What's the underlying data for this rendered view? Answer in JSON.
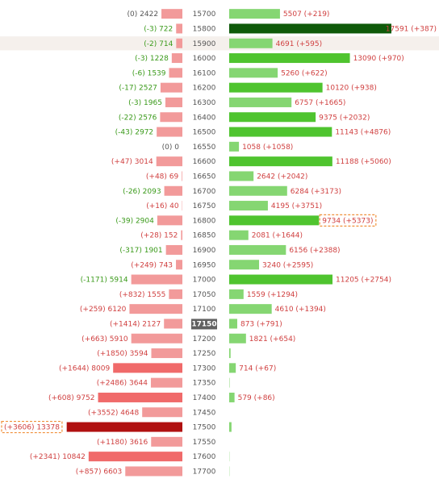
{
  "chart_data": {
    "type": "bar",
    "title": "",
    "xlabel": "",
    "ylabel": "",
    "left_max": 14000,
    "right_max": 17591,
    "current_strike": "17150",
    "colors": {
      "put_text_pos": "#d04040",
      "put_text_neg": "#3a9a1a",
      "put_text_zero": "#555555",
      "call_text": "#d04040",
      "put_bar": "#f29a9a",
      "put_bar_dark": "#f06a6a",
      "put_bar_max": "#b01010",
      "call_bar": "#85d672",
      "call_bar_dark": "#4fc42f",
      "call_bar_max": "#0f5a0a",
      "highlight_row": "#f5f0ec",
      "current_strike_bg": "#616161",
      "dashed_box": "#f0903a"
    },
    "rows": [
      {
        "strike": "15700",
        "put_label": "(0) 2422",
        "put_value": 2422,
        "put_change": 0,
        "call_label": "5507 (+219)",
        "call_value": 5507
      },
      {
        "strike": "15800",
        "put_label": "(-3) 722",
        "put_value": 722,
        "put_change": -3,
        "call_label": "17591 (+387)",
        "call_value": 17591,
        "call_max": true
      },
      {
        "strike": "15900",
        "put_label": "(-2) 714",
        "put_value": 714,
        "put_change": -2,
        "call_label": "4691 (+595)",
        "call_value": 4691,
        "highlight": true
      },
      {
        "strike": "16000",
        "put_label": "(-3) 1228",
        "put_value": 1228,
        "put_change": -3,
        "call_label": "13090 (+970)",
        "call_value": 13090
      },
      {
        "strike": "16100",
        "put_label": "(-6) 1539",
        "put_value": 1539,
        "put_change": -6,
        "call_label": "5260 (+622)",
        "call_value": 5260
      },
      {
        "strike": "16200",
        "put_label": "(-17) 2527",
        "put_value": 2527,
        "put_change": -17,
        "call_label": "10120 (+938)",
        "call_value": 10120
      },
      {
        "strike": "16300",
        "put_label": "(-3) 1965",
        "put_value": 1965,
        "put_change": -3,
        "call_label": "6757 (+1665)",
        "call_value": 6757
      },
      {
        "strike": "16400",
        "put_label": "(-22) 2576",
        "put_value": 2576,
        "put_change": -22,
        "call_label": "9375 (+2032)",
        "call_value": 9375
      },
      {
        "strike": "16500",
        "put_label": "(-43) 2972",
        "put_value": 2972,
        "put_change": -43,
        "call_label": "11143 (+4876)",
        "call_value": 11143
      },
      {
        "strike": "16550",
        "put_label": "(0) 0",
        "put_value": 0,
        "put_change": 0,
        "call_label": "1058 (+1058)",
        "call_value": 1058
      },
      {
        "strike": "16600",
        "put_label": "(+47) 3014",
        "put_value": 3014,
        "put_change": 47,
        "call_label": "11188 (+5060)",
        "call_value": 11188
      },
      {
        "strike": "16650",
        "put_label": "(+48) 69",
        "put_value": 69,
        "put_change": 48,
        "call_label": "2642 (+2042)",
        "call_value": 2642
      },
      {
        "strike": "16700",
        "put_label": "(-26) 2093",
        "put_value": 2093,
        "put_change": -26,
        "call_label": "6284 (+3173)",
        "call_value": 6284
      },
      {
        "strike": "16750",
        "put_label": "(+16) 40",
        "put_value": 40,
        "put_change": 16,
        "call_label": "4195 (+3751)",
        "call_value": 4195
      },
      {
        "strike": "16800",
        "put_label": "(-39) 2904",
        "put_value": 2904,
        "put_change": -39,
        "call_label": "9734 (+5373)",
        "call_value": 9734,
        "call_boxed": true
      },
      {
        "strike": "16850",
        "put_label": "(+28) 152",
        "put_value": 152,
        "put_change": 28,
        "call_label": "2081 (+1644)",
        "call_value": 2081
      },
      {
        "strike": "16900",
        "put_label": "(-317) 1901",
        "put_value": 1901,
        "put_change": -317,
        "call_label": "6156 (+2388)",
        "call_value": 6156
      },
      {
        "strike": "16950",
        "put_label": "(+249) 743",
        "put_value": 743,
        "put_change": 249,
        "call_label": "3240 (+2595)",
        "call_value": 3240
      },
      {
        "strike": "17000",
        "put_label": "(-1171) 5914",
        "put_value": 5914,
        "put_change": -1171,
        "call_label": "11205 (+2754)",
        "call_value": 11205
      },
      {
        "strike": "17050",
        "put_label": "(+832) 1555",
        "put_value": 1555,
        "put_change": 832,
        "call_label": "1559 (+1294)",
        "call_value": 1559
      },
      {
        "strike": "17100",
        "put_label": "(+259) 6120",
        "put_value": 6120,
        "put_change": 259,
        "call_label": "4610 (+1394)",
        "call_value": 4610
      },
      {
        "strike": "17150",
        "put_label": "(+1414) 2127",
        "put_value": 2127,
        "put_change": 1414,
        "call_label": "873 (+791)",
        "call_value": 873,
        "current": true
      },
      {
        "strike": "17200",
        "put_label": "(+663) 5910",
        "put_value": 5910,
        "put_change": 663,
        "call_label": "1821 (+654)",
        "call_value": 1821
      },
      {
        "strike": "17250",
        "put_label": "(+1850) 3594",
        "put_value": 3594,
        "put_change": 1850,
        "call_label": "",
        "call_value": 150
      },
      {
        "strike": "17300",
        "put_label": "(+1644) 8009",
        "put_value": 8009,
        "put_change": 1644,
        "call_label": "714 (+67)",
        "call_value": 714
      },
      {
        "strike": "17350",
        "put_label": "(+2486) 3644",
        "put_value": 3644,
        "put_change": 2486,
        "call_label": "",
        "call_value": 40
      },
      {
        "strike": "17400",
        "put_label": "(+608) 9752",
        "put_value": 9752,
        "put_change": 608,
        "call_label": "579 (+86)",
        "call_value": 579
      },
      {
        "strike": "17450",
        "put_label": "(+3552) 4648",
        "put_value": 4648,
        "put_change": 3552,
        "call_label": "",
        "call_value": 0
      },
      {
        "strike": "17500",
        "put_label": "(+3606) 13378",
        "put_value": 13378,
        "put_change": 3606,
        "call_label": "",
        "call_value": 250,
        "put_max": true,
        "put_boxed": true
      },
      {
        "strike": "17550",
        "put_label": "(+1180) 3616",
        "put_value": 3616,
        "put_change": 1180,
        "call_label": "",
        "call_value": 0
      },
      {
        "strike": "17600",
        "put_label": "(+2341) 10842",
        "put_value": 10842,
        "put_change": 2341,
        "call_label": "",
        "call_value": 25
      },
      {
        "strike": "17700",
        "put_label": "(+857) 6603",
        "put_value": 6603,
        "put_change": 857,
        "call_label": "",
        "call_value": 25
      }
    ]
  }
}
